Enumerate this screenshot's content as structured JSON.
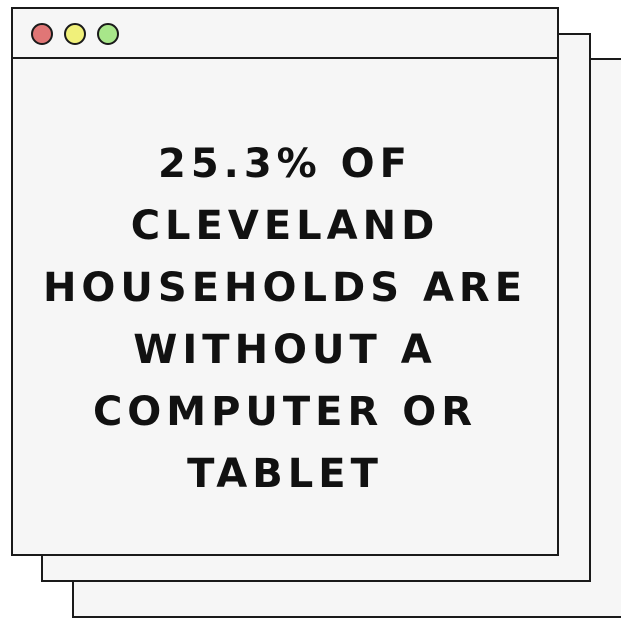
{
  "window": {
    "controls": [
      {
        "name": "close",
        "color": "#e07676"
      },
      {
        "name": "minimize",
        "color": "#f0f07a"
      },
      {
        "name": "maximize",
        "color": "#a8e68a"
      }
    ]
  },
  "headline": {
    "lines": [
      "25.3% OF",
      "CLEVELAND",
      "HOUSEHOLDS ARE",
      "WITHOUT A",
      "COMPUTER OR",
      "TABLET"
    ]
  }
}
